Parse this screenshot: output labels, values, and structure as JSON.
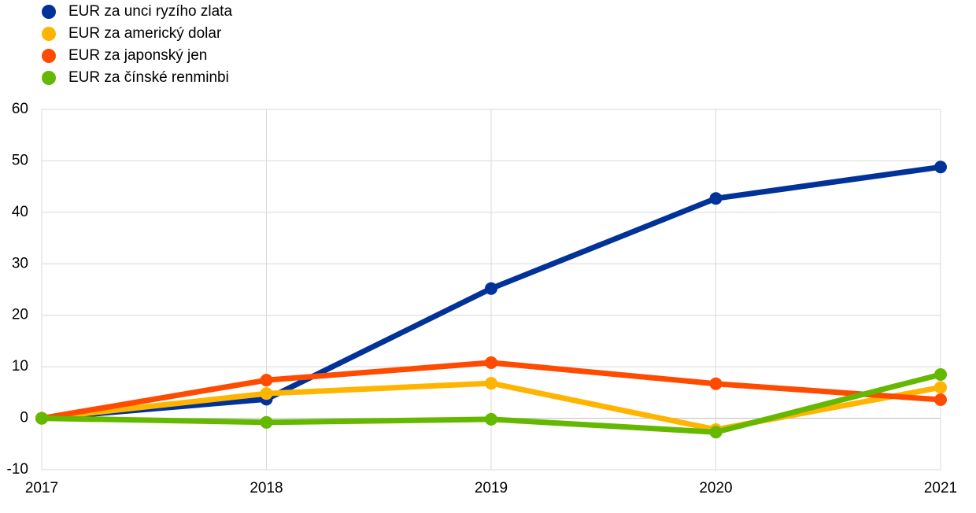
{
  "chart_data": {
    "type": "line",
    "categories": [
      "2017",
      "2018",
      "2019",
      "2020",
      "2021"
    ],
    "series": [
      {
        "name": "EUR za unci ryzího zlata",
        "color": "#003299",
        "values": [
          0,
          3.7,
          25.2,
          42.7,
          48.8
        ]
      },
      {
        "name": "EUR za americký dolar",
        "color": "#ffb400",
        "values": [
          0,
          4.8,
          6.8,
          -2.2,
          6.0
        ]
      },
      {
        "name": "EUR za japonský jen",
        "color": "#ff4b00",
        "values": [
          0,
          7.4,
          10.8,
          6.7,
          3.6
        ]
      },
      {
        "name": "EUR za čínské renminbi",
        "color": "#65b800",
        "values": [
          0,
          -0.8,
          -0.2,
          -2.7,
          8.5
        ]
      }
    ],
    "ylim": [
      -10,
      60
    ],
    "yticks": [
      -10,
      0,
      10,
      20,
      30,
      40,
      50,
      60
    ],
    "grid": true,
    "legend": "top-left"
  }
}
